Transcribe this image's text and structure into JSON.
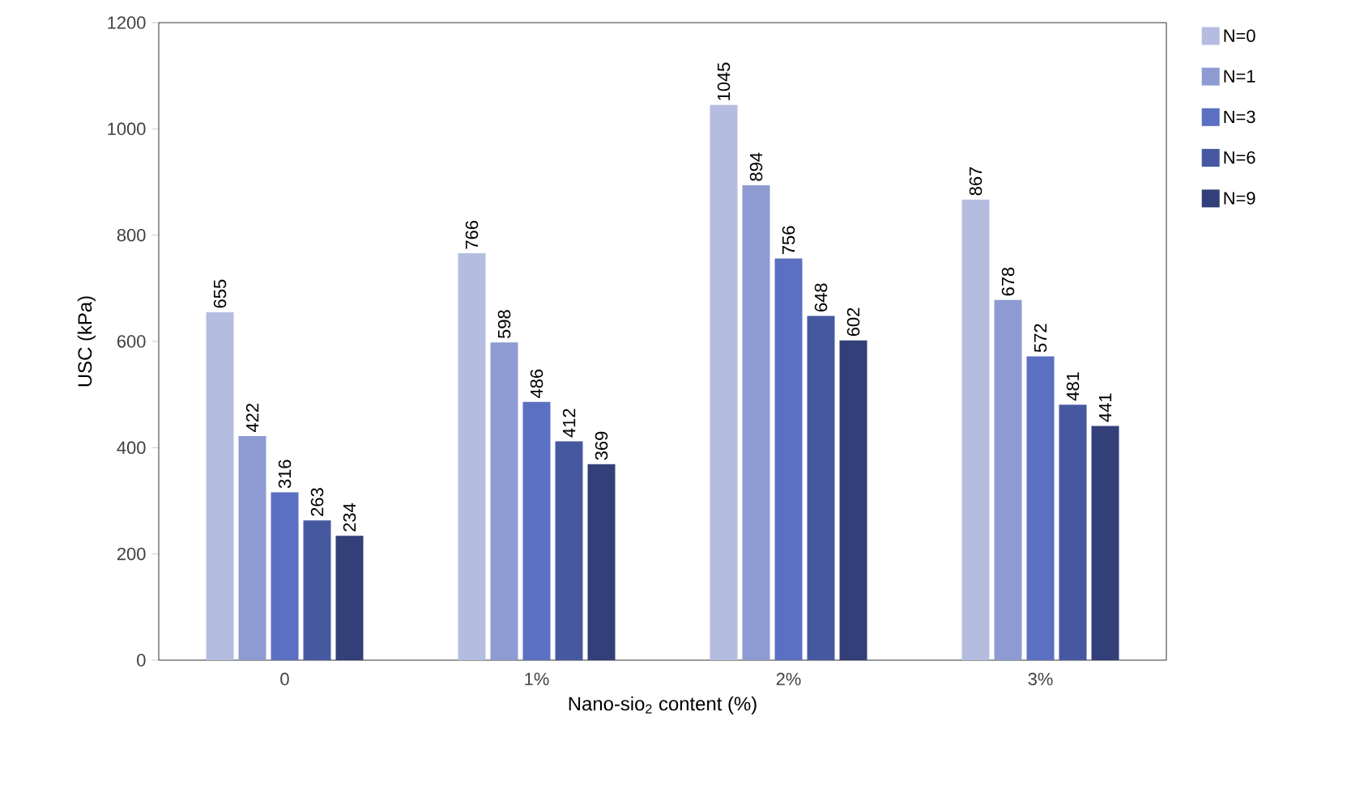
{
  "chart_data": {
    "type": "bar",
    "xlabel": "Nano-sio$_{2}$ content (%)",
    "ylabel": "USC (kPa)",
    "categories": [
      "0",
      "1%",
      "2%",
      "3%"
    ],
    "series": [
      {
        "name": "N=0",
        "color": "#b4bde0",
        "values": [
          655,
          766,
          1045,
          867
        ]
      },
      {
        "name": "N=1",
        "color": "#8e9bd2",
        "values": [
          422,
          598,
          894,
          678
        ]
      },
      {
        "name": "N=3",
        "color": "#5b70c2",
        "values": [
          316,
          486,
          756,
          572
        ]
      },
      {
        "name": "N=6",
        "color": "#4659a0",
        "values": [
          263,
          412,
          648,
          481
        ]
      },
      {
        "name": "N=9",
        "color": "#333f78",
        "values": [
          234,
          369,
          602,
          441
        ]
      }
    ],
    "ylim": [
      0,
      1200
    ],
    "yticks": [
      0,
      200,
      400,
      600,
      800,
      1000,
      1200
    ],
    "data_labels": true,
    "grid": false,
    "legend": "top right"
  }
}
